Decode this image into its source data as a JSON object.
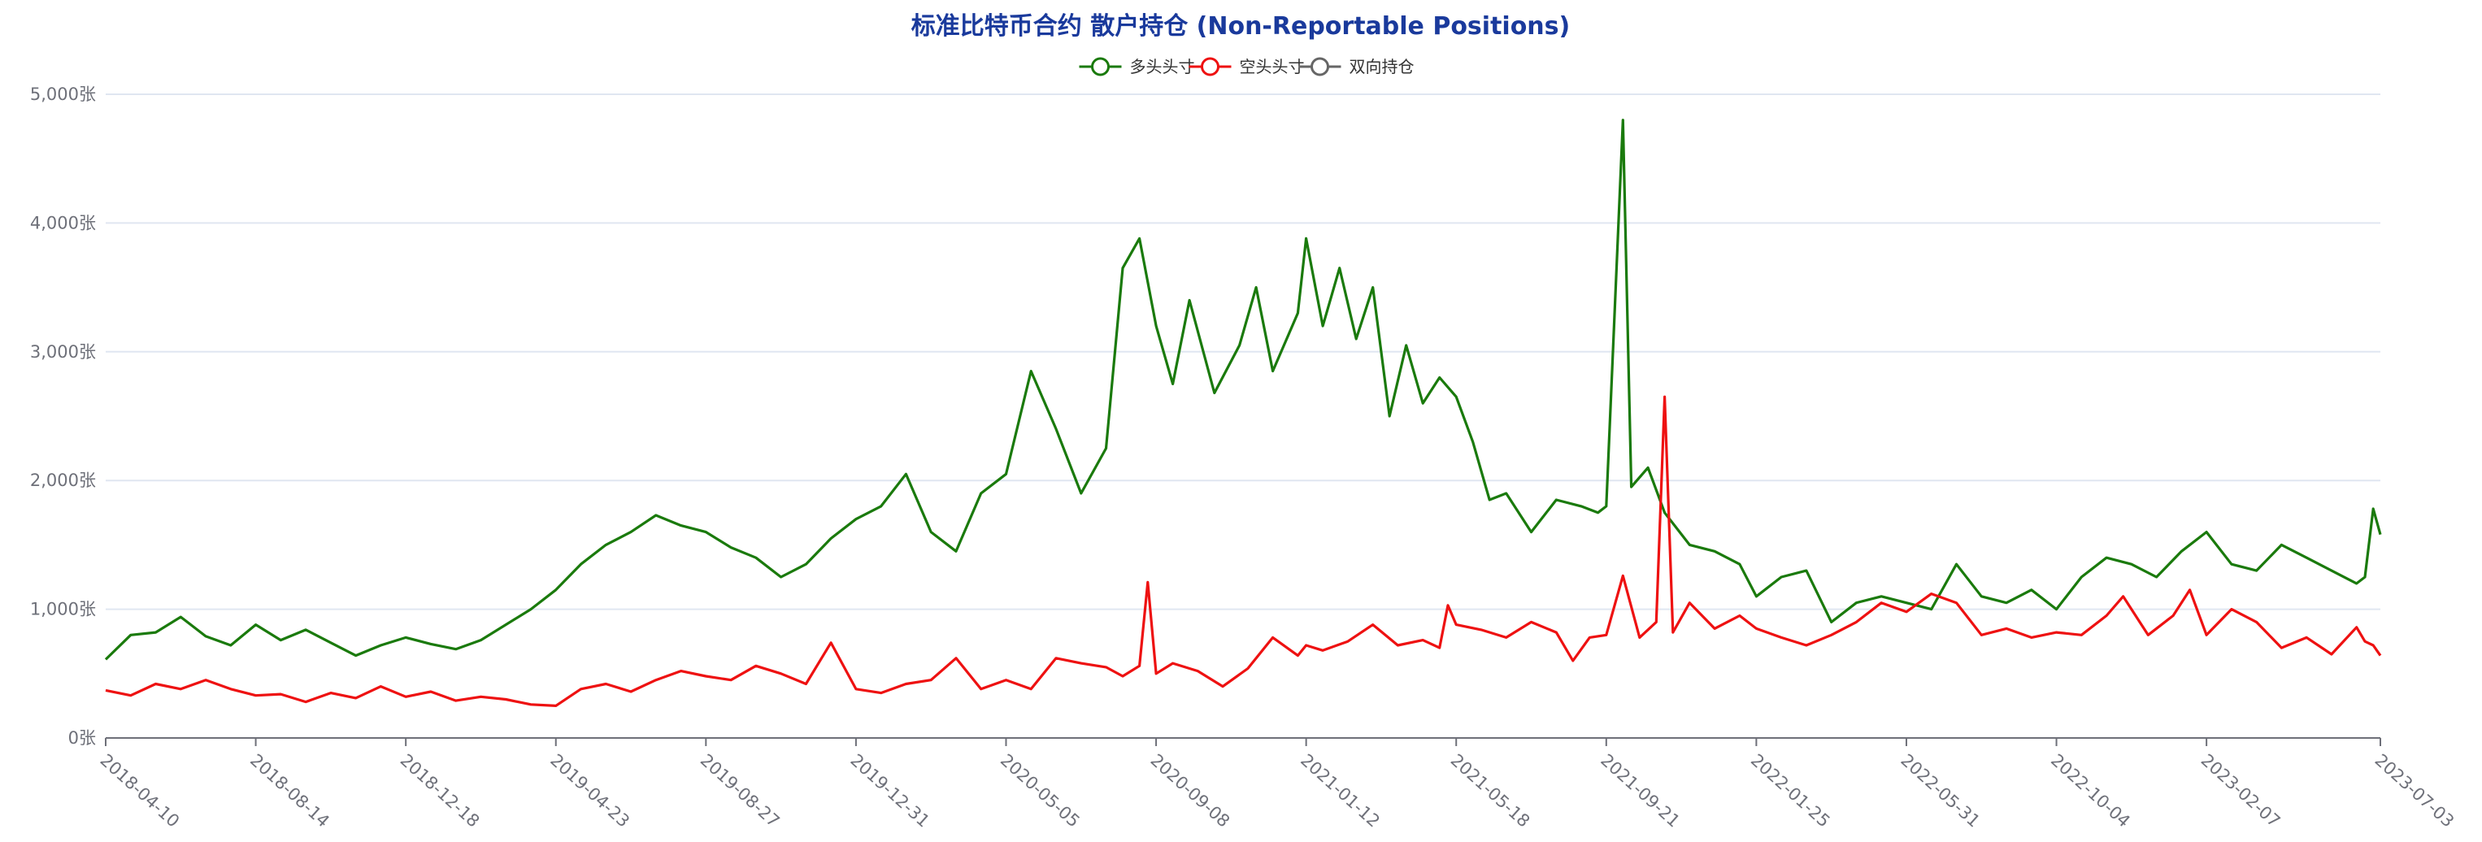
{
  "chart_data": {
    "type": "line",
    "title": "标准比特币合约 散户持仓 (Non-Reportable Positions)",
    "unit": "张",
    "ylim": [
      0,
      5000
    ],
    "yticks": [
      0,
      1000,
      2000,
      3000,
      4000,
      5000
    ],
    "ytick_labels": [
      "0张",
      "1,000张",
      "2,000张",
      "3,000张",
      "4,000张",
      "5,000张"
    ],
    "xlim": [
      "2018-04-10",
      "2023-07-03"
    ],
    "xtick_labels": [
      "2018-04-10",
      "2018-08-14",
      "2018-12-18",
      "2019-04-23",
      "2019-08-27",
      "2019-12-31",
      "2020-05-05",
      "2020-09-08",
      "2021-01-12",
      "2021-05-18",
      "2021-09-21",
      "2022-01-25",
      "2022-05-31",
      "2022-10-04",
      "2023-02-07",
      "2023-07-03"
    ],
    "grid": true,
    "legend_position": "top-center",
    "series": [
      {
        "name": "多头头寸",
        "color": "#1a7a0c",
        "points": [
          [
            "2018-04-10",
            610
          ],
          [
            "2018-05-01",
            800
          ],
          [
            "2018-05-22",
            820
          ],
          [
            "2018-06-12",
            940
          ],
          [
            "2018-07-03",
            790
          ],
          [
            "2018-07-24",
            720
          ],
          [
            "2018-08-14",
            880
          ],
          [
            "2018-09-04",
            760
          ],
          [
            "2018-09-25",
            840
          ],
          [
            "2018-10-16",
            740
          ],
          [
            "2018-11-06",
            640
          ],
          [
            "2018-11-27",
            720
          ],
          [
            "2018-12-18",
            780
          ],
          [
            "2019-01-08",
            730
          ],
          [
            "2019-01-29",
            690
          ],
          [
            "2019-02-19",
            760
          ],
          [
            "2019-03-12",
            880
          ],
          [
            "2019-04-02",
            1000
          ],
          [
            "2019-04-23",
            1150
          ],
          [
            "2019-05-14",
            1350
          ],
          [
            "2019-06-04",
            1500
          ],
          [
            "2019-06-25",
            1600
          ],
          [
            "2019-07-16",
            1730
          ],
          [
            "2019-08-06",
            1650
          ],
          [
            "2019-08-27",
            1600
          ],
          [
            "2019-09-17",
            1480
          ],
          [
            "2019-10-08",
            1400
          ],
          [
            "2019-10-29",
            1250
          ],
          [
            "2019-11-19",
            1350
          ],
          [
            "2019-12-10",
            1550
          ],
          [
            "2019-12-31",
            1700
          ],
          [
            "2020-01-21",
            1800
          ],
          [
            "2020-02-11",
            2050
          ],
          [
            "2020-03-03",
            1600
          ],
          [
            "2020-03-24",
            1450
          ],
          [
            "2020-04-14",
            1900
          ],
          [
            "2020-05-05",
            2050
          ],
          [
            "2020-05-26",
            2850
          ],
          [
            "2020-06-16",
            2400
          ],
          [
            "2020-07-07",
            1900
          ],
          [
            "2020-07-28",
            2250
          ],
          [
            "2020-08-11",
            3650
          ],
          [
            "2020-08-25",
            3880
          ],
          [
            "2020-09-08",
            3200
          ],
          [
            "2020-09-22",
            2750
          ],
          [
            "2020-10-06",
            3400
          ],
          [
            "2020-10-27",
            2680
          ],
          [
            "2020-11-17",
            3050
          ],
          [
            "2020-12-01",
            3500
          ],
          [
            "2020-12-15",
            2850
          ],
          [
            "2021-01-05",
            3300
          ],
          [
            "2021-01-12",
            3880
          ],
          [
            "2021-01-26",
            3200
          ],
          [
            "2021-02-09",
            3650
          ],
          [
            "2021-02-23",
            3100
          ],
          [
            "2021-03-09",
            3500
          ],
          [
            "2021-03-23",
            2500
          ],
          [
            "2021-04-06",
            3050
          ],
          [
            "2021-04-20",
            2600
          ],
          [
            "2021-05-04",
            2800
          ],
          [
            "2021-05-18",
            2650
          ],
          [
            "2021-06-01",
            2300
          ],
          [
            "2021-06-15",
            1850
          ],
          [
            "2021-06-29",
            1900
          ],
          [
            "2021-07-20",
            1600
          ],
          [
            "2021-08-10",
            1850
          ],
          [
            "2021-08-31",
            1800
          ],
          [
            "2021-09-14",
            1750
          ],
          [
            "2021-09-21",
            1800
          ],
          [
            "2021-10-05",
            4800
          ],
          [
            "2021-10-12",
            1950
          ],
          [
            "2021-10-26",
            2100
          ],
          [
            "2021-11-09",
            1750
          ],
          [
            "2021-11-30",
            1500
          ],
          [
            "2021-12-21",
            1450
          ],
          [
            "2022-01-11",
            1350
          ],
          [
            "2022-01-25",
            1100
          ],
          [
            "2022-02-15",
            1250
          ],
          [
            "2022-03-08",
            1300
          ],
          [
            "2022-03-29",
            900
          ],
          [
            "2022-04-19",
            1050
          ],
          [
            "2022-05-10",
            1100
          ],
          [
            "2022-05-31",
            1050
          ],
          [
            "2022-06-21",
            1000
          ],
          [
            "2022-07-12",
            1350
          ],
          [
            "2022-08-02",
            1100
          ],
          [
            "2022-08-23",
            1050
          ],
          [
            "2022-09-13",
            1150
          ],
          [
            "2022-10-04",
            1000
          ],
          [
            "2022-10-25",
            1250
          ],
          [
            "2022-11-15",
            1400
          ],
          [
            "2022-12-06",
            1350
          ],
          [
            "2022-12-27",
            1250
          ],
          [
            "2023-01-17",
            1450
          ],
          [
            "2023-02-07",
            1600
          ],
          [
            "2023-02-28",
            1350
          ],
          [
            "2023-03-21",
            1300
          ],
          [
            "2023-04-11",
            1500
          ],
          [
            "2023-05-02",
            1400
          ],
          [
            "2023-05-23",
            1300
          ],
          [
            "2023-06-13",
            1200
          ],
          [
            "2023-06-20",
            1250
          ],
          [
            "2023-06-27",
            1780
          ],
          [
            "2023-07-03",
            1580
          ]
        ]
      },
      {
        "name": "空头头寸",
        "color": "#ee1111",
        "points": [
          [
            "2018-04-10",
            370
          ],
          [
            "2018-05-01",
            330
          ],
          [
            "2018-05-22",
            420
          ],
          [
            "2018-06-12",
            380
          ],
          [
            "2018-07-03",
            450
          ],
          [
            "2018-07-24",
            380
          ],
          [
            "2018-08-14",
            330
          ],
          [
            "2018-09-04",
            340
          ],
          [
            "2018-09-25",
            280
          ],
          [
            "2018-10-16",
            350
          ],
          [
            "2018-11-06",
            310
          ],
          [
            "2018-11-27",
            400
          ],
          [
            "2018-12-18",
            320
          ],
          [
            "2019-01-08",
            360
          ],
          [
            "2019-01-29",
            290
          ],
          [
            "2019-02-19",
            320
          ],
          [
            "2019-03-12",
            300
          ],
          [
            "2019-04-02",
            260
          ],
          [
            "2019-04-23",
            250
          ],
          [
            "2019-05-14",
            380
          ],
          [
            "2019-06-04",
            420
          ],
          [
            "2019-06-25",
            360
          ],
          [
            "2019-07-16",
            450
          ],
          [
            "2019-08-06",
            520
          ],
          [
            "2019-08-27",
            480
          ],
          [
            "2019-09-17",
            450
          ],
          [
            "2019-10-08",
            560
          ],
          [
            "2019-10-29",
            500
          ],
          [
            "2019-11-19",
            420
          ],
          [
            "2019-12-10",
            740
          ],
          [
            "2019-12-31",
            380
          ],
          [
            "2020-01-21",
            350
          ],
          [
            "2020-02-11",
            420
          ],
          [
            "2020-03-03",
            450
          ],
          [
            "2020-03-24",
            620
          ],
          [
            "2020-04-14",
            380
          ],
          [
            "2020-05-05",
            450
          ],
          [
            "2020-05-26",
            380
          ],
          [
            "2020-06-16",
            620
          ],
          [
            "2020-07-07",
            580
          ],
          [
            "2020-07-28",
            550
          ],
          [
            "2020-08-11",
            480
          ],
          [
            "2020-08-25",
            560
          ],
          [
            "2020-09-01",
            1210
          ],
          [
            "2020-09-08",
            500
          ],
          [
            "2020-09-22",
            580
          ],
          [
            "2020-10-13",
            520
          ],
          [
            "2020-11-03",
            400
          ],
          [
            "2020-11-24",
            540
          ],
          [
            "2020-12-15",
            780
          ],
          [
            "2021-01-05",
            640
          ],
          [
            "2021-01-12",
            720
          ],
          [
            "2021-01-26",
            680
          ],
          [
            "2021-02-16",
            750
          ],
          [
            "2021-03-09",
            880
          ],
          [
            "2021-03-30",
            720
          ],
          [
            "2021-04-20",
            760
          ],
          [
            "2021-05-04",
            700
          ],
          [
            "2021-05-11",
            1030
          ],
          [
            "2021-05-18",
            880
          ],
          [
            "2021-06-08",
            840
          ],
          [
            "2021-06-29",
            780
          ],
          [
            "2021-07-20",
            900
          ],
          [
            "2021-08-10",
            820
          ],
          [
            "2021-08-24",
            600
          ],
          [
            "2021-09-07",
            780
          ],
          [
            "2021-09-21",
            800
          ],
          [
            "2021-10-05",
            1260
          ],
          [
            "2021-10-19",
            780
          ],
          [
            "2021-11-02",
            900
          ],
          [
            "2021-11-09",
            2650
          ],
          [
            "2021-11-16",
            820
          ],
          [
            "2021-11-30",
            1050
          ],
          [
            "2021-12-21",
            850
          ],
          [
            "2022-01-11",
            950
          ],
          [
            "2022-01-25",
            850
          ],
          [
            "2022-02-15",
            780
          ],
          [
            "2022-03-08",
            720
          ],
          [
            "2022-03-29",
            800
          ],
          [
            "2022-04-19",
            900
          ],
          [
            "2022-05-10",
            1050
          ],
          [
            "2022-05-31",
            980
          ],
          [
            "2022-06-21",
            1120
          ],
          [
            "2022-07-12",
            1050
          ],
          [
            "2022-08-02",
            800
          ],
          [
            "2022-08-23",
            850
          ],
          [
            "2022-09-13",
            780
          ],
          [
            "2022-10-04",
            820
          ],
          [
            "2022-10-25",
            800
          ],
          [
            "2022-11-15",
            950
          ],
          [
            "2022-11-29",
            1100
          ],
          [
            "2022-12-20",
            800
          ],
          [
            "2023-01-10",
            950
          ],
          [
            "2023-01-24",
            1150
          ],
          [
            "2023-02-07",
            800
          ],
          [
            "2023-02-28",
            1000
          ],
          [
            "2023-03-21",
            900
          ],
          [
            "2023-04-11",
            700
          ],
          [
            "2023-05-02",
            780
          ],
          [
            "2023-05-23",
            650
          ],
          [
            "2023-06-13",
            860
          ],
          [
            "2023-06-20",
            750
          ],
          [
            "2023-06-27",
            720
          ],
          [
            "2023-07-03",
            640
          ]
        ]
      },
      {
        "name": "双向持仓",
        "color": "#666666",
        "points": []
      }
    ]
  }
}
